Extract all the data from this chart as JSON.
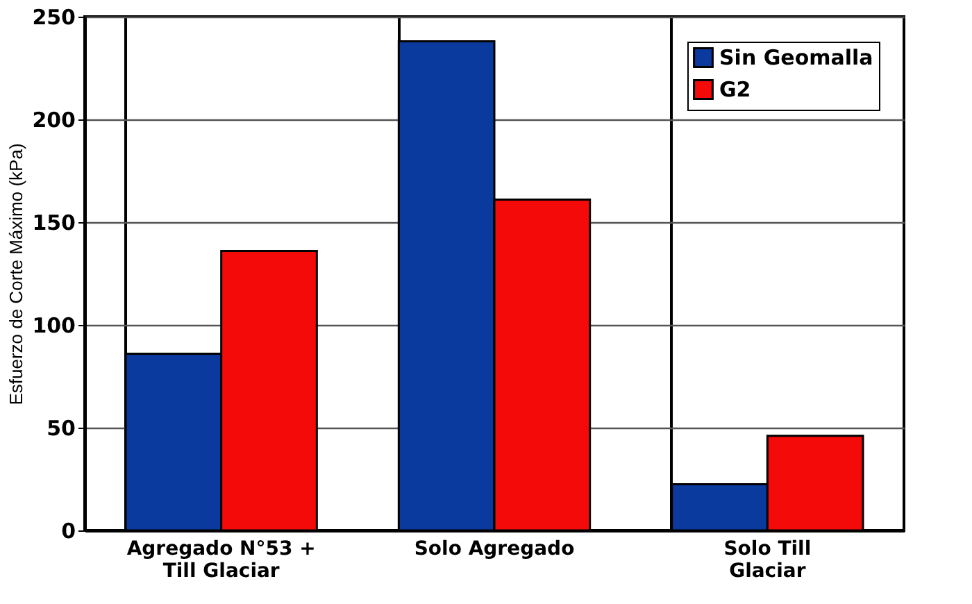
{
  "chart_data": {
    "type": "bar",
    "ylabel": "Esfuerzo de Corte Máximo (kPa)",
    "categories": [
      "Agregado N°53 + Till Glaciar",
      "Solo Agregado",
      "Solo Till Glaciar"
    ],
    "series": [
      {
        "name": "Sin Geomalla",
        "color": "#0a3a9e",
        "values": [
          86,
          238,
          22.5
        ]
      },
      {
        "name": "G2",
        "color": "#f50a0a",
        "values": [
          136,
          161,
          46
        ]
      }
    ],
    "ylim": [
      0,
      250
    ],
    "yticks": [
      0,
      50,
      100,
      150,
      200,
      250
    ],
    "grid": true,
    "legend": "top right"
  }
}
